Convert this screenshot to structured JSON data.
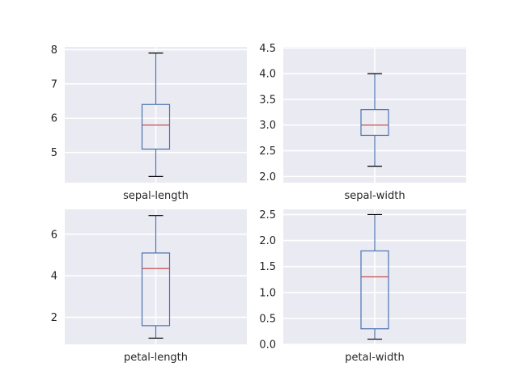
{
  "chart_data": [
    {
      "type": "box",
      "category": "sepal-length",
      "whisker_low": 4.3,
      "q1": 5.1,
      "median": 5.8,
      "q3": 6.4,
      "whisker_high": 7.9,
      "ylim": [
        4.12,
        8.08
      ],
      "yticks": [
        5,
        6,
        7,
        8
      ],
      "ytick_labels": [
        "5",
        "6",
        "7",
        "8"
      ]
    },
    {
      "type": "box",
      "category": "sepal-width",
      "whisker_low": 2.2,
      "q1": 2.8,
      "median": 3.0,
      "q3": 3.3,
      "whisker_high": 4.0,
      "ylim": [
        1.88,
        4.52
      ],
      "yticks": [
        2.0,
        2.5,
        3.0,
        3.5,
        4.0,
        4.5
      ],
      "ytick_labels": [
        "2.0",
        "2.5",
        "3.0",
        "3.5",
        "4.0",
        "4.5"
      ]
    },
    {
      "type": "box",
      "category": "petal-length",
      "whisker_low": 1.0,
      "q1": 1.6,
      "median": 4.35,
      "q3": 5.1,
      "whisker_high": 6.9,
      "ylim": [
        0.7,
        7.2
      ],
      "yticks": [
        2,
        4,
        6
      ],
      "ytick_labels": [
        "2",
        "4",
        "6"
      ]
    },
    {
      "type": "box",
      "category": "petal-width",
      "whisker_low": 0.1,
      "q1": 0.3,
      "median": 1.3,
      "q3": 1.8,
      "whisker_high": 2.5,
      "ylim": [
        0.0,
        2.6
      ],
      "yticks": [
        0.0,
        0.5,
        1.0,
        1.5,
        2.0,
        2.5
      ],
      "ytick_labels": [
        "0.0",
        "0.5",
        "1.0",
        "1.5",
        "2.0",
        "2.5"
      ]
    }
  ],
  "style": {
    "axes_background": "#eaeaf2",
    "grid_color": "#ffffff",
    "box_color": "#4c72b0",
    "median_color": "#c44e52",
    "cap_color": "#000000",
    "text_color": "#262626"
  }
}
